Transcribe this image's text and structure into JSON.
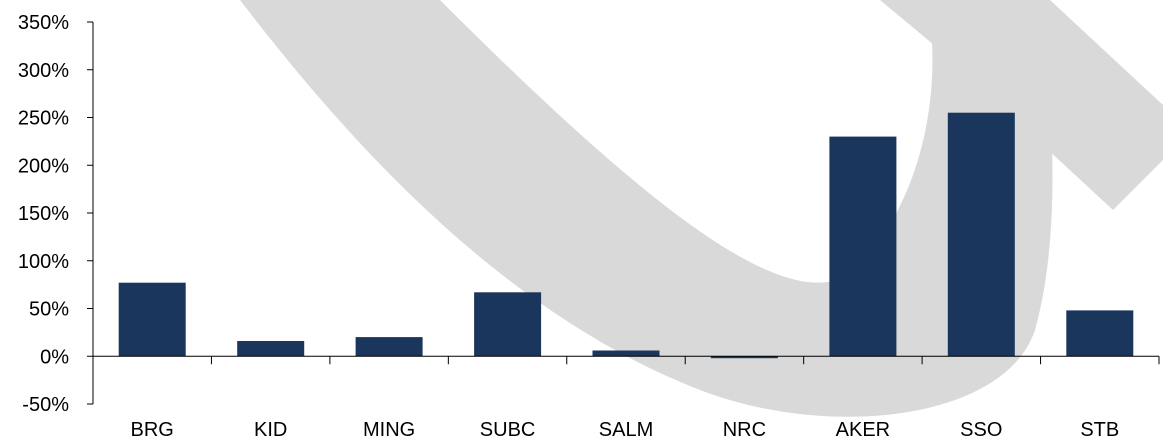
{
  "chart_data": {
    "type": "bar",
    "categories": [
      "BRG",
      "KID",
      "MING",
      "SUBC",
      "SALM",
      "NRC",
      "AKER",
      "SSO",
      "STB"
    ],
    "values": [
      77,
      16,
      20,
      67,
      6,
      -2,
      230,
      255,
      48
    ],
    "y_ticks": [
      "350%",
      "300%",
      "250%",
      "200%",
      "150%",
      "100%",
      "50%",
      "0%",
      "-50%"
    ],
    "y_tick_values": [
      350,
      300,
      250,
      200,
      150,
      100,
      50,
      0,
      -50
    ],
    "ylim": [
      -50,
      350
    ],
    "grid": false,
    "legend": "none",
    "title": "",
    "xlabel": "",
    "ylabel": "",
    "bar_color": "#1b365d",
    "axis_color": "#000000",
    "watermark_color": "#d9d9d9"
  }
}
